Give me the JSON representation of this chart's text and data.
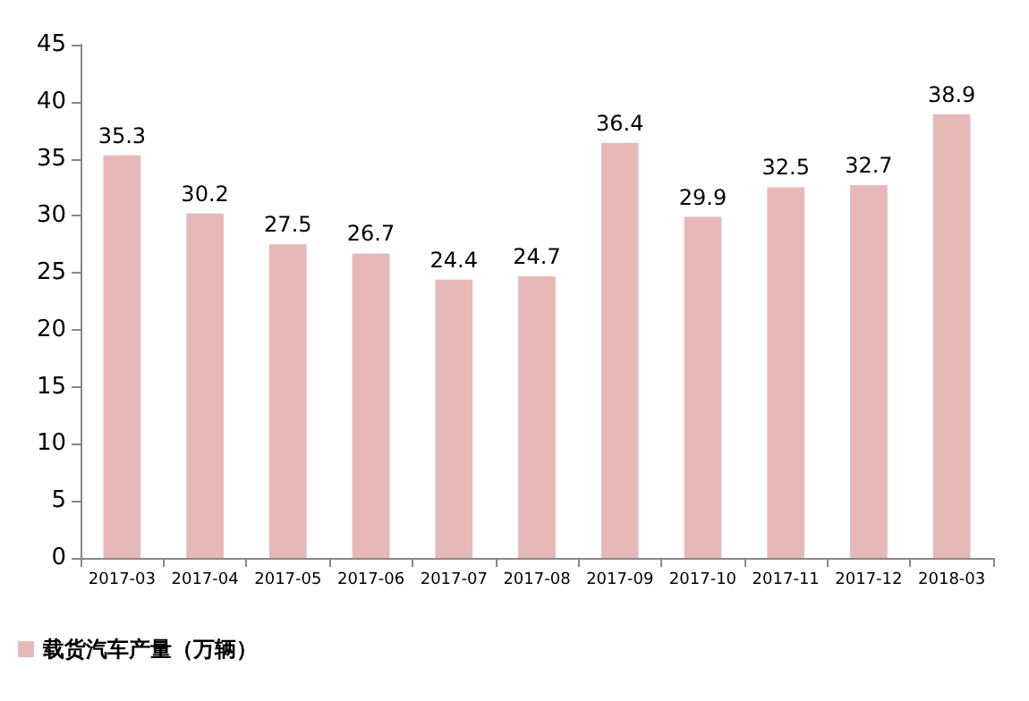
{
  "chart_data": {
    "type": "bar",
    "categories": [
      "2017-03",
      "2017-04",
      "2017-05",
      "2017-06",
      "2017-07",
      "2017-08",
      "2017-09",
      "2017-10",
      "2017-11",
      "2017-12",
      "2018-03"
    ],
    "series": [
      {
        "name": "载货汽车产量（万辆）",
        "color": "#e6b9b8",
        "values": [
          35.3,
          30.2,
          27.5,
          26.7,
          24.4,
          24.7,
          36.4,
          29.9,
          32.5,
          32.7,
          38.9
        ]
      }
    ],
    "ylim": [
      0,
      45
    ],
    "yticks": [
      0,
      5,
      10,
      15,
      20,
      25,
      30,
      35,
      40,
      45
    ],
    "data_labels": true,
    "grid": false,
    "legend": "bottom left"
  }
}
